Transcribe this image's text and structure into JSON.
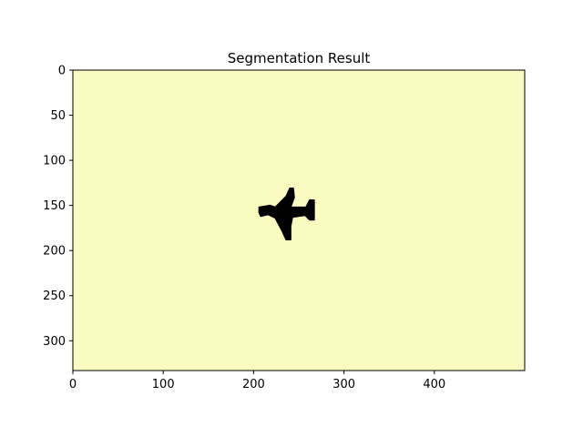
{
  "chart_data": {
    "type": "heatmap",
    "title": "Segmentation Result",
    "xlabel": "",
    "ylabel": "",
    "image_size": {
      "width": 500,
      "height": 333
    },
    "xlim": [
      0,
      500
    ],
    "ylim": [
      333,
      0
    ],
    "x_ticks": [
      0,
      100,
      200,
      300,
      400
    ],
    "y_ticks": [
      0,
      50,
      100,
      150,
      200,
      250,
      300
    ],
    "grid": false,
    "legend": "none",
    "colors": {
      "background_class": "#fafbc0",
      "foreground_class": "#000000",
      "axes": "#000000"
    },
    "segments": [
      {
        "label": "background",
        "color": "#fafbc0"
      },
      {
        "label": "foreground",
        "color": "#000000",
        "polygon": [
          [
            206,
            152
          ],
          [
            218,
            150
          ],
          [
            224,
            152
          ],
          [
            236,
            140
          ],
          [
            240,
            131
          ],
          [
            244,
            131
          ],
          [
            245,
            141
          ],
          [
            241,
            152
          ],
          [
            258,
            152
          ],
          [
            262,
            144
          ],
          [
            267,
            144
          ],
          [
            267,
            166
          ],
          [
            262,
            166
          ],
          [
            257,
            161
          ],
          [
            243,
            163
          ],
          [
            241,
            173
          ],
          [
            241,
            188
          ],
          [
            236,
            188
          ],
          [
            232,
            179
          ],
          [
            224,
            164
          ],
          [
            216,
            160
          ],
          [
            208,
            162
          ],
          [
            206,
            158
          ]
        ]
      }
    ]
  }
}
